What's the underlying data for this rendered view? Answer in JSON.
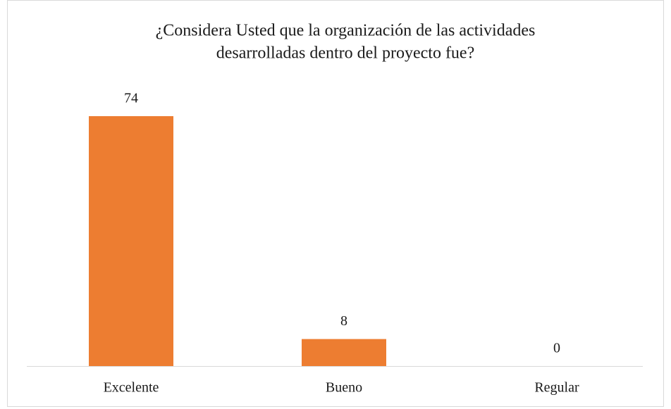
{
  "chart_data": {
    "type": "bar",
    "title": [
      "¿Considera Usted que la organización de las actividades",
      "desarrolladas dentro del proyecto fue?"
    ],
    "categories": [
      "Excelente",
      "Bueno",
      "Regular"
    ],
    "values": [
      74,
      8,
      0
    ],
    "color": "#ed7d31"
  }
}
